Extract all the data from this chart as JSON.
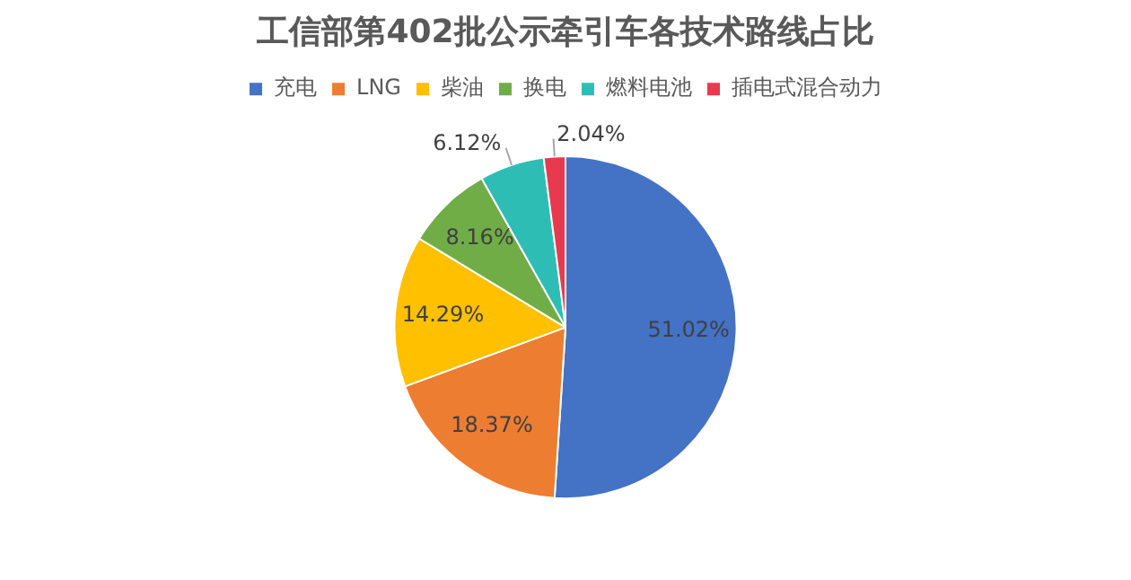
{
  "chart_data": {
    "type": "pie",
    "title": "工信部第402批公示牵引车各技术路线占比",
    "categories": [
      "充电",
      "LNG",
      "柴油",
      "换电",
      "燃料电池",
      "插电式混合动力"
    ],
    "values": [
      51.02,
      18.37,
      14.29,
      8.16,
      6.12,
      2.04
    ],
    "value_labels": [
      "51.02%",
      "18.37%",
      "14.29%",
      "8.16%",
      "6.12%",
      "2.04%"
    ],
    "colors": [
      "#4472c4",
      "#ed7d31",
      "#ffc000",
      "#70ad47",
      "#2ebdb5",
      "#e8394e"
    ],
    "legend": "top"
  }
}
